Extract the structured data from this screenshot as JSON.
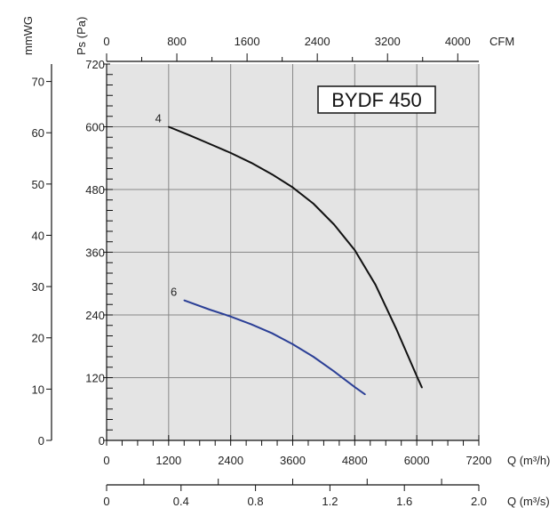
{
  "chart_data": {
    "type": "line",
    "model_label": "BYDF 450",
    "axes": {
      "q_m3h": {
        "label": "Q (m³/h)",
        "min": 0,
        "max": 7200,
        "ticks": [
          "0",
          "1200",
          "2400",
          "3600",
          "4800",
          "6000",
          "7200"
        ]
      },
      "q_m3s": {
        "label": "Q (m³/s)",
        "min": 0,
        "max": 2.0,
        "ticks": [
          "0",
          "0.4",
          "0.8",
          "1.2",
          "1.6",
          "2.0"
        ]
      },
      "cfm": {
        "label": "CFM",
        "min": 0,
        "max": 4240,
        "ticks": [
          "0",
          "800",
          "1600",
          "2400",
          "3200",
          "4000"
        ]
      },
      "ps_pa": {
        "label": "Ps (Pa)",
        "min": 0,
        "max": 720,
        "ticks": [
          "0",
          "120",
          "240",
          "360",
          "480",
          "600",
          "720"
        ]
      },
      "mmwg": {
        "label": "mmWG",
        "min": 0,
        "max": 73.4,
        "ticks": [
          "0",
          "10",
          "20",
          "30",
          "40",
          "50",
          "60",
          "70"
        ]
      }
    },
    "grid": true,
    "series": [
      {
        "name": "4",
        "color": "#111111",
        "x": [
          1200,
          1600,
          2000,
          2400,
          2800,
          3200,
          3600,
          4000,
          4400,
          4800,
          5200,
          5600,
          6000,
          6100
        ],
        "y": [
          600,
          584,
          567,
          550,
          531,
          509,
          484,
          453,
          413,
          364,
          298,
          214,
          123,
          101
        ]
      },
      {
        "name": "6",
        "color": "#2b3f96",
        "x": [
          1500,
          2000,
          2400,
          2800,
          3200,
          3600,
          4000,
          4400,
          4800,
          5000
        ],
        "y": [
          268,
          250,
          237,
          222,
          205,
          184,
          160,
          132,
          102,
          88
        ]
      }
    ]
  }
}
